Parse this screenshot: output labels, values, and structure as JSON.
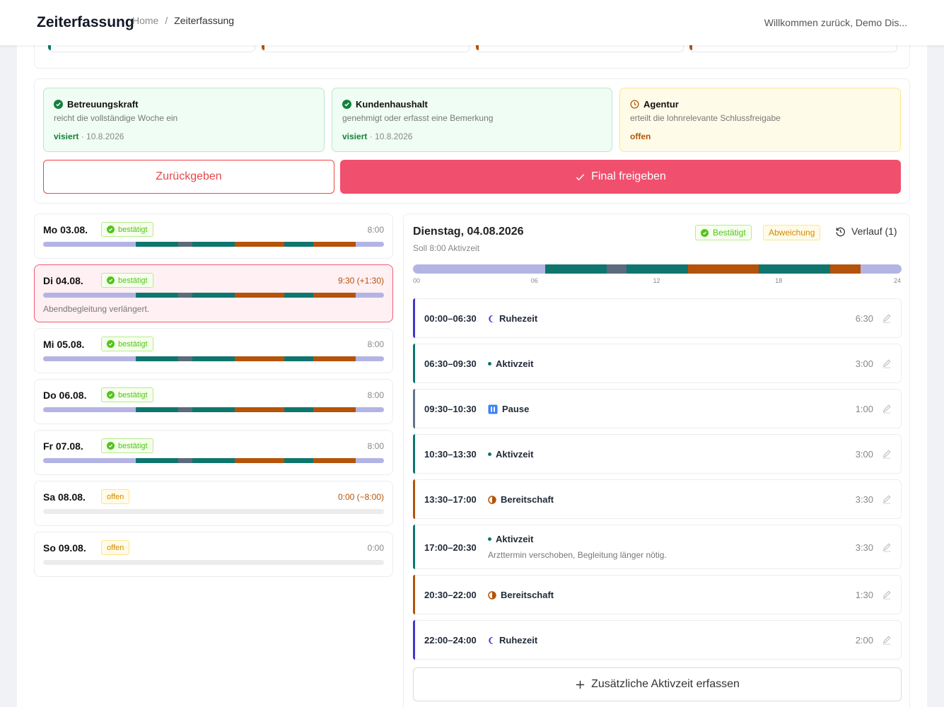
{
  "header": {
    "app_title": "Zeiterfassung",
    "breadcrumb": [
      "Home",
      "Zeiterfassung"
    ],
    "breadcrumb_separator": "/",
    "welcome": "Willkommen zurück, Demo Dis..."
  },
  "approvals": [
    {
      "role": "Betreuungskraft",
      "desc": "reicht die vollständige Woche ein",
      "status": "visiert",
      "date": "· 10.8.2026",
      "state": "done"
    },
    {
      "role": "Kundenhaushalt",
      "desc": "genehmigt oder erfasst eine Bemerkung",
      "status": "visiert",
      "date": "· 10.8.2026",
      "state": "done"
    },
    {
      "role": "Agentur",
      "desc": "erteilt die lohnrelevante Schlussfreigabe",
      "status": "offen",
      "date": "",
      "state": "pending"
    }
  ],
  "actions": {
    "return_label": "Zurückgeben",
    "final_label": "Final freigeben"
  },
  "colors": {
    "rest": "#b4b4e4",
    "active": "#0f766e",
    "pause": "#5b6b7b",
    "standby": "#b45309",
    "empty": "#ececec",
    "accent": "#f0506e"
  },
  "days": [
    {
      "label": "Mo 03.08.",
      "status": "bestätigt",
      "hours": "8:00",
      "note": ""
    },
    {
      "label": "Di 04.08.",
      "status": "bestätigt",
      "hours": "9:30 (+1:30)",
      "note": "Abendbegleitung verlängert."
    },
    {
      "label": "Mi 05.08.",
      "status": "bestätigt",
      "hours": "8:00",
      "note": ""
    },
    {
      "label": "Do 06.08.",
      "status": "bestätigt",
      "hours": "8:00",
      "note": ""
    },
    {
      "label": "Fr 07.08.",
      "status": "bestätigt",
      "hours": "8:00",
      "note": ""
    },
    {
      "label": "Sa 08.08.",
      "status": "offen",
      "hours": "0:00 (−8:00)",
      "note": ""
    },
    {
      "label": "So 09.08.",
      "status": "offen",
      "hours": "0:00",
      "note": ""
    }
  ],
  "day_bar_segments": [
    {
      "type": "rest",
      "from": 0,
      "to": 6.5
    },
    {
      "type": "active",
      "from": 6.5,
      "to": 9.5
    },
    {
      "type": "pause",
      "from": 9.5,
      "to": 10.5
    },
    {
      "type": "active",
      "from": 10.5,
      "to": 13.5
    },
    {
      "type": "standby",
      "from": 13.5,
      "to": 17
    },
    {
      "type": "active",
      "from": 17,
      "to": 19
    },
    {
      "type": "standby",
      "from": 19,
      "to": 22
    },
    {
      "type": "rest",
      "from": 22,
      "to": 24
    }
  ],
  "detail": {
    "title": "Dienstag, 04.08.2026",
    "subtitle": "Soll 8:00 Aktivzeit",
    "status": "Bestätigt",
    "deviation": "Abweichung",
    "history": "Verlauf (1)",
    "ticks": [
      "00",
      "06",
      "12",
      "18",
      "24"
    ],
    "timeline": [
      {
        "type": "rest",
        "from": 0,
        "to": 6.5
      },
      {
        "type": "active",
        "from": 6.5,
        "to": 9.5
      },
      {
        "type": "pause",
        "from": 9.5,
        "to": 10.5
      },
      {
        "type": "active",
        "from": 10.5,
        "to": 13.5
      },
      {
        "type": "standby",
        "from": 13.5,
        "to": 17
      },
      {
        "type": "active",
        "from": 17,
        "to": 20.5
      },
      {
        "type": "standby",
        "from": 20.5,
        "to": 22
      },
      {
        "type": "rest",
        "from": 22,
        "to": 24
      }
    ],
    "entries": [
      {
        "time": "00:00–06:30",
        "type": "Ruhezeit",
        "kind": "rest",
        "duration": "6:30",
        "comment": ""
      },
      {
        "time": "06:30–09:30",
        "type": "Aktivzeit",
        "kind": "active",
        "duration": "3:00",
        "comment": ""
      },
      {
        "time": "09:30–10:30",
        "type": "Pause",
        "kind": "pause",
        "duration": "1:00",
        "comment": ""
      },
      {
        "time": "10:30–13:30",
        "type": "Aktivzeit",
        "kind": "active",
        "duration": "3:00",
        "comment": ""
      },
      {
        "time": "13:30–17:00",
        "type": "Bereitschaft",
        "kind": "standby",
        "duration": "3:30",
        "comment": ""
      },
      {
        "time": "17:00–20:30",
        "type": "Aktivzeit",
        "kind": "active",
        "duration": "3:30",
        "comment": "Arzttermin verschoben, Begleitung länger nötig."
      },
      {
        "time": "20:30–22:00",
        "type": "Bereitschaft",
        "kind": "standby",
        "duration": "1:30",
        "comment": ""
      },
      {
        "time": "22:00–24:00",
        "type": "Ruhezeit",
        "kind": "rest",
        "duration": "2:00",
        "comment": ""
      }
    ],
    "add_label": "Zusätzliche Aktivzeit erfassen"
  }
}
